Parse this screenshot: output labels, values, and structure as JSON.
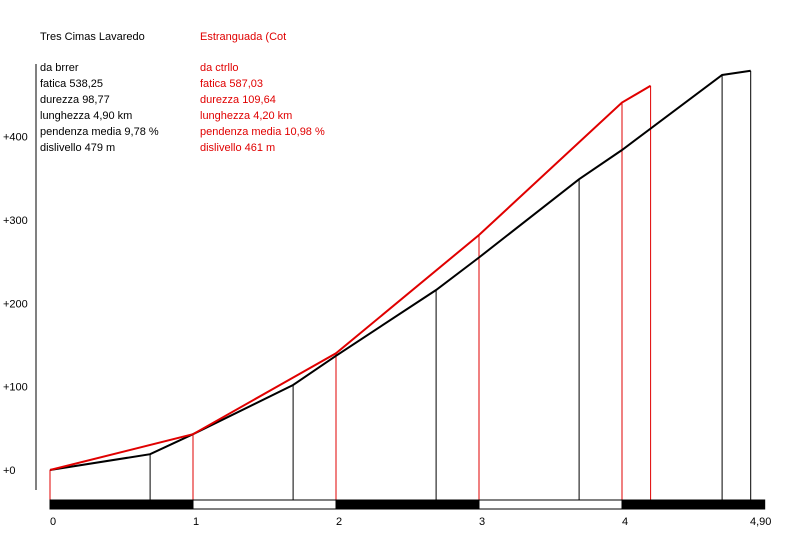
{
  "colors": {
    "series_a": "#000000",
    "series_b": "#e00000"
  },
  "info_panels": [
    {
      "title": "Tres Cimas Lavaredo",
      "lines": [
        "da brrer",
        "fatica 538,25",
        "durezza 98,77",
        "lunghezza 4,90 km",
        "pendenza media 9,78 %",
        "dislivello 479 m"
      ]
    },
    {
      "title": "Estranguada (Cot",
      "lines": [
        "da ctrllo",
        "fatica 587,03",
        "durezza 109,64",
        "lunghezza 4,20 km",
        "pendenza media 10,98 %",
        "dislivello 461 m"
      ]
    }
  ],
  "chart_data": {
    "type": "line",
    "title": "",
    "xlabel": "",
    "ylabel": "",
    "xlim": [
      0,
      4.9
    ],
    "ylim": [
      0,
      480
    ],
    "x_ticks": [
      0,
      1,
      2,
      3,
      4,
      4.9
    ],
    "x_tick_labels": [
      "0",
      "1",
      "2",
      "3",
      "4",
      "4,90"
    ],
    "y_ticks": [
      0,
      100,
      200,
      300,
      400
    ],
    "y_tick_labels": [
      "+0",
      "+100",
      "+200",
      "+300",
      "+400"
    ],
    "grid": false,
    "km_scale_bar": true,
    "series": [
      {
        "color": "#000000",
        "x": [
          0,
          0.7,
          1.0,
          1.7,
          2.0,
          2.7,
          3.0,
          3.7,
          4.0,
          4.7,
          4.9
        ],
        "y": [
          0,
          19,
          43,
          102,
          137,
          216,
          255,
          349,
          384,
          474,
          479
        ]
      },
      {
        "color": "#e00000",
        "x": [
          0,
          1.0,
          2.0,
          3.0,
          4.0,
          4.2
        ],
        "y": [
          0,
          43,
          140,
          282,
          441,
          461
        ]
      }
    ]
  }
}
